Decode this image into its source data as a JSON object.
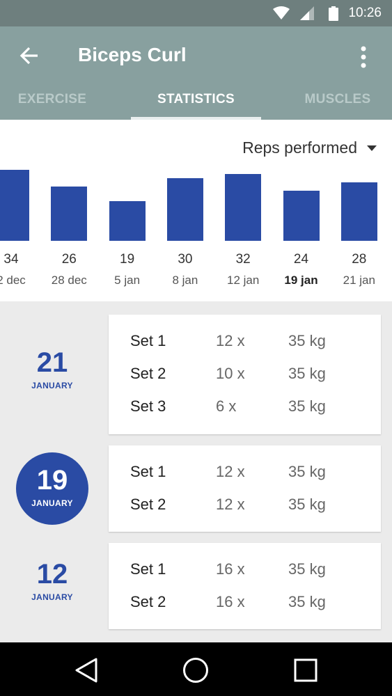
{
  "status": {
    "time": "10:26",
    "icons": [
      "wifi-icon",
      "cell-signal-icon",
      "battery-icon"
    ]
  },
  "appbar": {
    "title": "Biceps Curl",
    "back_icon": "arrow-left-icon",
    "more_icon": "more-vert-icon"
  },
  "tabs": [
    {
      "label": "EXERCISE",
      "selected": false
    },
    {
      "label": "STATISTICS",
      "selected": true
    },
    {
      "label": "MUSCLES",
      "selected": false
    }
  ],
  "metric": {
    "label": "Reps performed",
    "icon": "dropdown-arrow-icon"
  },
  "chart_data": {
    "type": "bar",
    "categories": [
      "2 dec",
      "28 dec",
      "5 jan",
      "8 jan",
      "12 jan",
      "19 jan",
      "21 jan"
    ],
    "values": [
      34,
      26,
      19,
      30,
      32,
      24,
      28
    ],
    "selected_category": "19 jan",
    "color": "#2a4ba4",
    "legend": "none",
    "grid": false
  },
  "days": [
    {
      "day": "21",
      "month": "JANUARY",
      "selected": false,
      "sets": [
        {
          "label": "Set 1",
          "reps": "12 x",
          "weight": "35 kg"
        },
        {
          "label": "Set 2",
          "reps": "10 x",
          "weight": "35 kg"
        },
        {
          "label": "Set 3",
          "reps": "6 x",
          "weight": "35 kg"
        }
      ]
    },
    {
      "day": "19",
      "month": "JANUARY",
      "selected": true,
      "sets": [
        {
          "label": "Set 1",
          "reps": "12 x",
          "weight": "35 kg"
        },
        {
          "label": "Set 2",
          "reps": "12 x",
          "weight": "35 kg"
        }
      ]
    },
    {
      "day": "12",
      "month": "JANUARY",
      "selected": false,
      "sets": [
        {
          "label": "Set 1",
          "reps": "16 x",
          "weight": "35 kg"
        },
        {
          "label": "Set 2",
          "reps": "16 x",
          "weight": "35 kg"
        }
      ]
    }
  ],
  "colors": {
    "statusbar": "#6e7f7e",
    "appbar": "#88a09f",
    "accent": "#2a4ba4"
  },
  "navbar": {
    "icons": [
      "back-triangle-icon",
      "home-circle-icon",
      "recents-square-icon"
    ]
  }
}
